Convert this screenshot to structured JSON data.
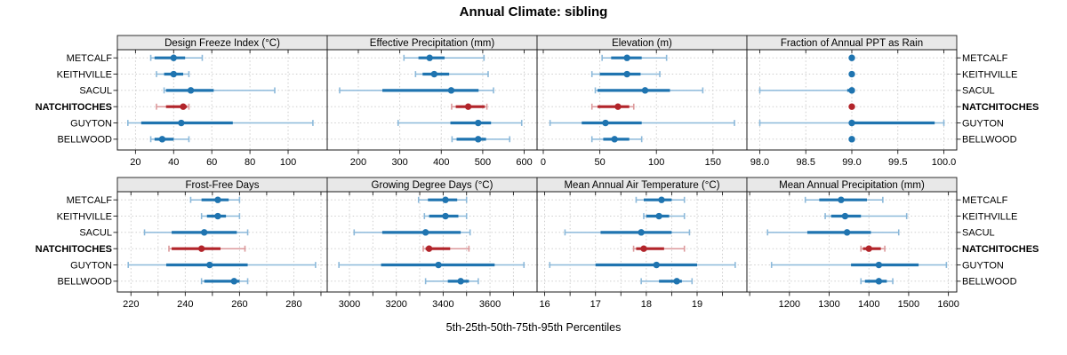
{
  "chart_data": {
    "type": "dot-whisker-trellis",
    "title": "Annual Climate: sibling",
    "xlabel": "5th-25th-50th-75th-95th Percentiles",
    "legend_position": "none",
    "grid": "dotted",
    "layout": {
      "rows": 2,
      "cols": 4
    },
    "percentiles": [
      5,
      25,
      50,
      75,
      95
    ],
    "sites": [
      "METCALF",
      "KEITHVILLE",
      "SACUL",
      "NATCHITOCHES",
      "GUYTON",
      "BELLWOOD"
    ],
    "highlight_site": "NATCHITOCHES",
    "panels": [
      {
        "title": "Design Freeze Index (°C)",
        "xlim": [
          10.5,
          120.5
        ],
        "ticks": [
          20,
          40,
          60,
          80,
          100
        ],
        "tick_labels": [
          "20",
          "40",
          "60",
          "80",
          "100"
        ],
        "minor_ticks": [],
        "series": [
          [
            28,
            30,
            40,
            46,
            55
          ],
          [
            31,
            35,
            40,
            45,
            48
          ],
          [
            35,
            36,
            49,
            61,
            93
          ],
          [
            31,
            36,
            45,
            47,
            48
          ],
          [
            16,
            23,
            44,
            71,
            113
          ],
          [
            28,
            30,
            34,
            40,
            48
          ]
        ]
      },
      {
        "title": "Effective Precipitation (mm)",
        "xlim": [
          125,
          631
        ],
        "ticks": [
          200,
          300,
          400,
          500,
          600
        ],
        "tick_labels": [
          "200",
          "300",
          "400",
          "500",
          "600"
        ],
        "minor_ticks": [],
        "series": [
          [
            310,
            345,
            372,
            408,
            503
          ],
          [
            338,
            355,
            383,
            419,
            513
          ],
          [
            155,
            258,
            424,
            490,
            526
          ],
          [
            425,
            435,
            465,
            505,
            510
          ],
          [
            296,
            422,
            489,
            520,
            594
          ],
          [
            426,
            437,
            489,
            508,
            565
          ]
        ]
      },
      {
        "title": "Elevation (m)",
        "xlim": [
          -5.5,
          180
        ],
        "ticks": [
          0,
          50,
          100,
          150
        ],
        "tick_labels": [
          "0",
          "50",
          "100",
          "150"
        ],
        "minor_ticks": [],
        "series": [
          [
            52,
            60,
            74,
            87,
            109
          ],
          [
            43,
            50,
            74,
            86,
            103
          ],
          [
            46,
            48,
            90,
            112,
            141
          ],
          [
            43,
            48,
            66,
            76,
            80
          ],
          [
            6,
            34,
            55,
            87,
            169
          ],
          [
            43,
            53,
            63,
            76,
            87
          ]
        ]
      },
      {
        "title": "Fraction of Annual PPT as Rain",
        "xlim": [
          97.86,
          100.14
        ],
        "ticks": [
          98.0,
          98.5,
          99.0,
          99.5,
          100.0
        ],
        "tick_labels": [
          "98.0",
          "98.5",
          "99.0",
          "99.5",
          "100.0"
        ],
        "minor_ticks": [],
        "series": [
          [
            99,
            99,
            99,
            99,
            99
          ],
          [
            99,
            99,
            99,
            99,
            99
          ],
          [
            98,
            98.95,
            99,
            99,
            99
          ],
          [
            99,
            99,
            99,
            99,
            99
          ],
          [
            98,
            99,
            99,
            99.9,
            100
          ],
          [
            99,
            99,
            99,
            99,
            99
          ]
        ]
      },
      {
        "title": "Frost-Free Days",
        "xlim": [
          215,
          292.3
        ],
        "ticks": [
          220,
          240,
          260,
          280
        ],
        "tick_labels": [
          "220",
          "240",
          "260",
          "280"
        ],
        "minor_ticks": [
          230,
          250,
          270,
          290
        ],
        "series": [
          [
            242,
            246,
            252,
            256,
            260
          ],
          [
            246,
            248,
            252,
            255,
            260
          ],
          [
            225,
            235,
            247,
            259,
            263
          ],
          [
            234,
            235,
            246,
            253,
            262
          ],
          [
            219,
            233,
            249,
            263,
            288
          ],
          [
            246,
            247,
            258,
            260,
            263
          ]
        ]
      },
      {
        "title": "Growing Degree Days (°C)",
        "xlim": [
          2905,
          3801
        ],
        "ticks": [
          3000,
          3200,
          3400,
          3600
        ],
        "tick_labels": [
          "3000",
          "3200",
          "3400",
          "3600"
        ],
        "minor_ticks": [
          3100,
          3300,
          3500,
          3700
        ],
        "series": [
          [
            3295,
            3335,
            3410,
            3460,
            3500
          ],
          [
            3320,
            3340,
            3410,
            3465,
            3500
          ],
          [
            3020,
            3140,
            3325,
            3475,
            3515
          ],
          [
            3315,
            3325,
            3340,
            3430,
            3510
          ],
          [
            2955,
            3135,
            3380,
            3620,
            3745
          ],
          [
            3325,
            3420,
            3475,
            3510,
            3550
          ]
        ]
      },
      {
        "title": "Mean Annual Air Temperature (°C)",
        "xlim": [
          15.85,
          19.98
        ],
        "ticks": [
          16,
          17,
          18,
          19
        ],
        "tick_labels": [
          "16",
          "17",
          "18",
          "19"
        ],
        "minor_ticks": [
          16.5,
          17.5,
          18.5,
          19.5
        ],
        "series": [
          [
            17.8,
            17.95,
            18.3,
            18.5,
            18.75
          ],
          [
            17.95,
            18.0,
            18.25,
            18.45,
            18.75
          ],
          [
            16.4,
            17.1,
            17.9,
            18.5,
            18.85
          ],
          [
            17.75,
            17.8,
            17.95,
            18.35,
            18.75
          ],
          [
            16.1,
            17.0,
            18.2,
            19.0,
            19.75
          ],
          [
            17.9,
            18.25,
            18.6,
            18.7,
            18.9
          ]
        ]
      },
      {
        "title": "Mean Annual Precipitation (mm)",
        "xlim": [
          1093,
          1621
        ],
        "ticks": [
          1200,
          1300,
          1400,
          1500,
          1600
        ],
        "tick_labels": [
          "1200",
          "1300",
          "1400",
          "1500",
          "1600"
        ],
        "minor_ticks": [
          1100
        ],
        "series": [
          [
            1240,
            1275,
            1330,
            1395,
            1435
          ],
          [
            1290,
            1305,
            1340,
            1380,
            1495
          ],
          [
            1145,
            1245,
            1345,
            1405,
            1475
          ],
          [
            1380,
            1385,
            1400,
            1430,
            1440
          ],
          [
            1155,
            1355,
            1425,
            1525,
            1595
          ],
          [
            1380,
            1390,
            1425,
            1445,
            1460
          ]
        ]
      }
    ],
    "colors": {
      "site_default": "#1f74b0",
      "site_default_light": "#8cb9da",
      "site_highlight": "#b2242a",
      "site_highlight_light": "#dc9a9c",
      "grid": "#c8c8c8",
      "strip_bg": "#e8e8e8",
      "border": "#1a1a1a",
      "text": "#000000"
    }
  }
}
